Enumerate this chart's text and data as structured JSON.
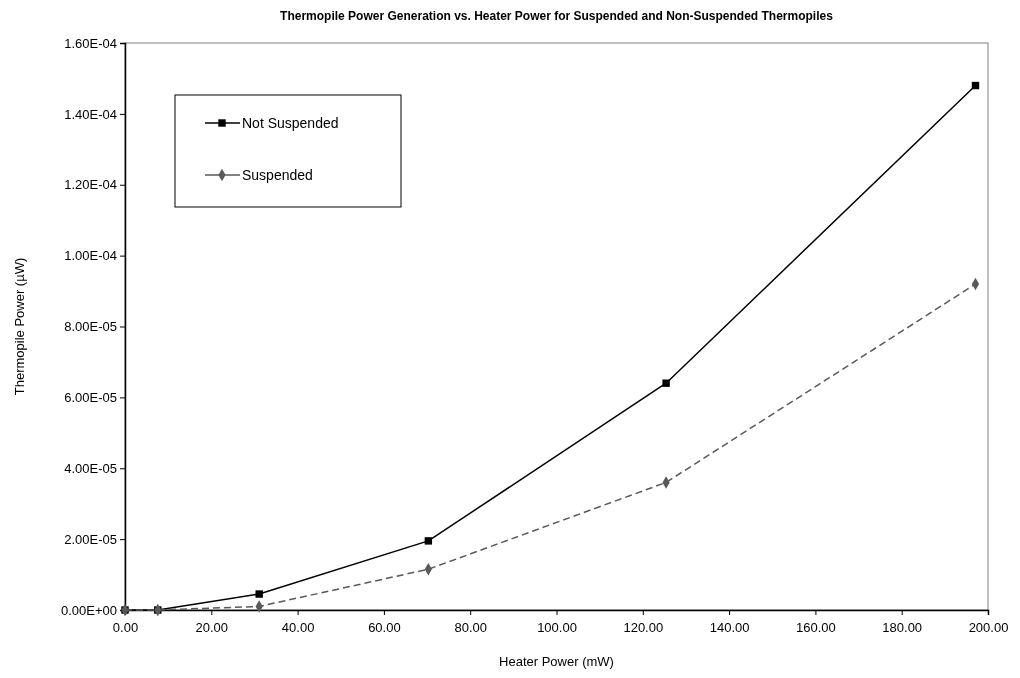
{
  "chart_data": {
    "type": "line",
    "title": "Thermopile Power Generation vs. Heater Power for Suspended and Non-Suspended Thermopiles",
    "xlabel": "Heater Power (mW)",
    "ylabel": "Thermopile Power (µW)",
    "x": [
      0,
      7.6,
      31.1,
      70.3,
      125.4,
      197.1
    ],
    "series": [
      {
        "name": "Not Suspended",
        "color": "#000000",
        "marker": "square",
        "line_style": "solid",
        "values": [
          0,
          0,
          4.5e-06,
          1.95e-05,
          6.4e-05,
          0.000148
        ]
      },
      {
        "name": "Suspended",
        "color": "#595959",
        "marker": "diamond",
        "line_style": "dashed",
        "values": [
          0,
          0,
          1e-06,
          1.15e-05,
          3.6e-05,
          9.2e-05
        ]
      }
    ],
    "xlim": [
      0,
      200
    ],
    "xticks": [
      {
        "value": 0,
        "label": "0.00"
      },
      {
        "value": 20,
        "label": "20.00"
      },
      {
        "value": 40,
        "label": "40.00"
      },
      {
        "value": 60,
        "label": "60.00"
      },
      {
        "value": 80,
        "label": "80.00"
      },
      {
        "value": 100,
        "label": "100.00"
      },
      {
        "value": 120,
        "label": "120.00"
      },
      {
        "value": 140,
        "label": "140.00"
      },
      {
        "value": 160,
        "label": "160.00"
      },
      {
        "value": 180,
        "label": "180.00"
      },
      {
        "value": 200,
        "label": "200.00"
      }
    ],
    "ylim": [
      0,
      0.00016
    ],
    "yticks": [
      {
        "value": 0,
        "label": "0.00E+00"
      },
      {
        "value": 2e-05,
        "label": "2.00E-05"
      },
      {
        "value": 4e-05,
        "label": "4.00E-05"
      },
      {
        "value": 6e-05,
        "label": "6.00E-05"
      },
      {
        "value": 8e-05,
        "label": "8.00E-05"
      },
      {
        "value": 0.0001,
        "label": "1.00E-04"
      },
      {
        "value": 0.00012,
        "label": "1.20E-04"
      },
      {
        "value": 0.00014,
        "label": "1.40E-04"
      },
      {
        "value": 0.00016,
        "label": "1.60E-04"
      }
    ],
    "grid": false,
    "legend": "top left"
  }
}
